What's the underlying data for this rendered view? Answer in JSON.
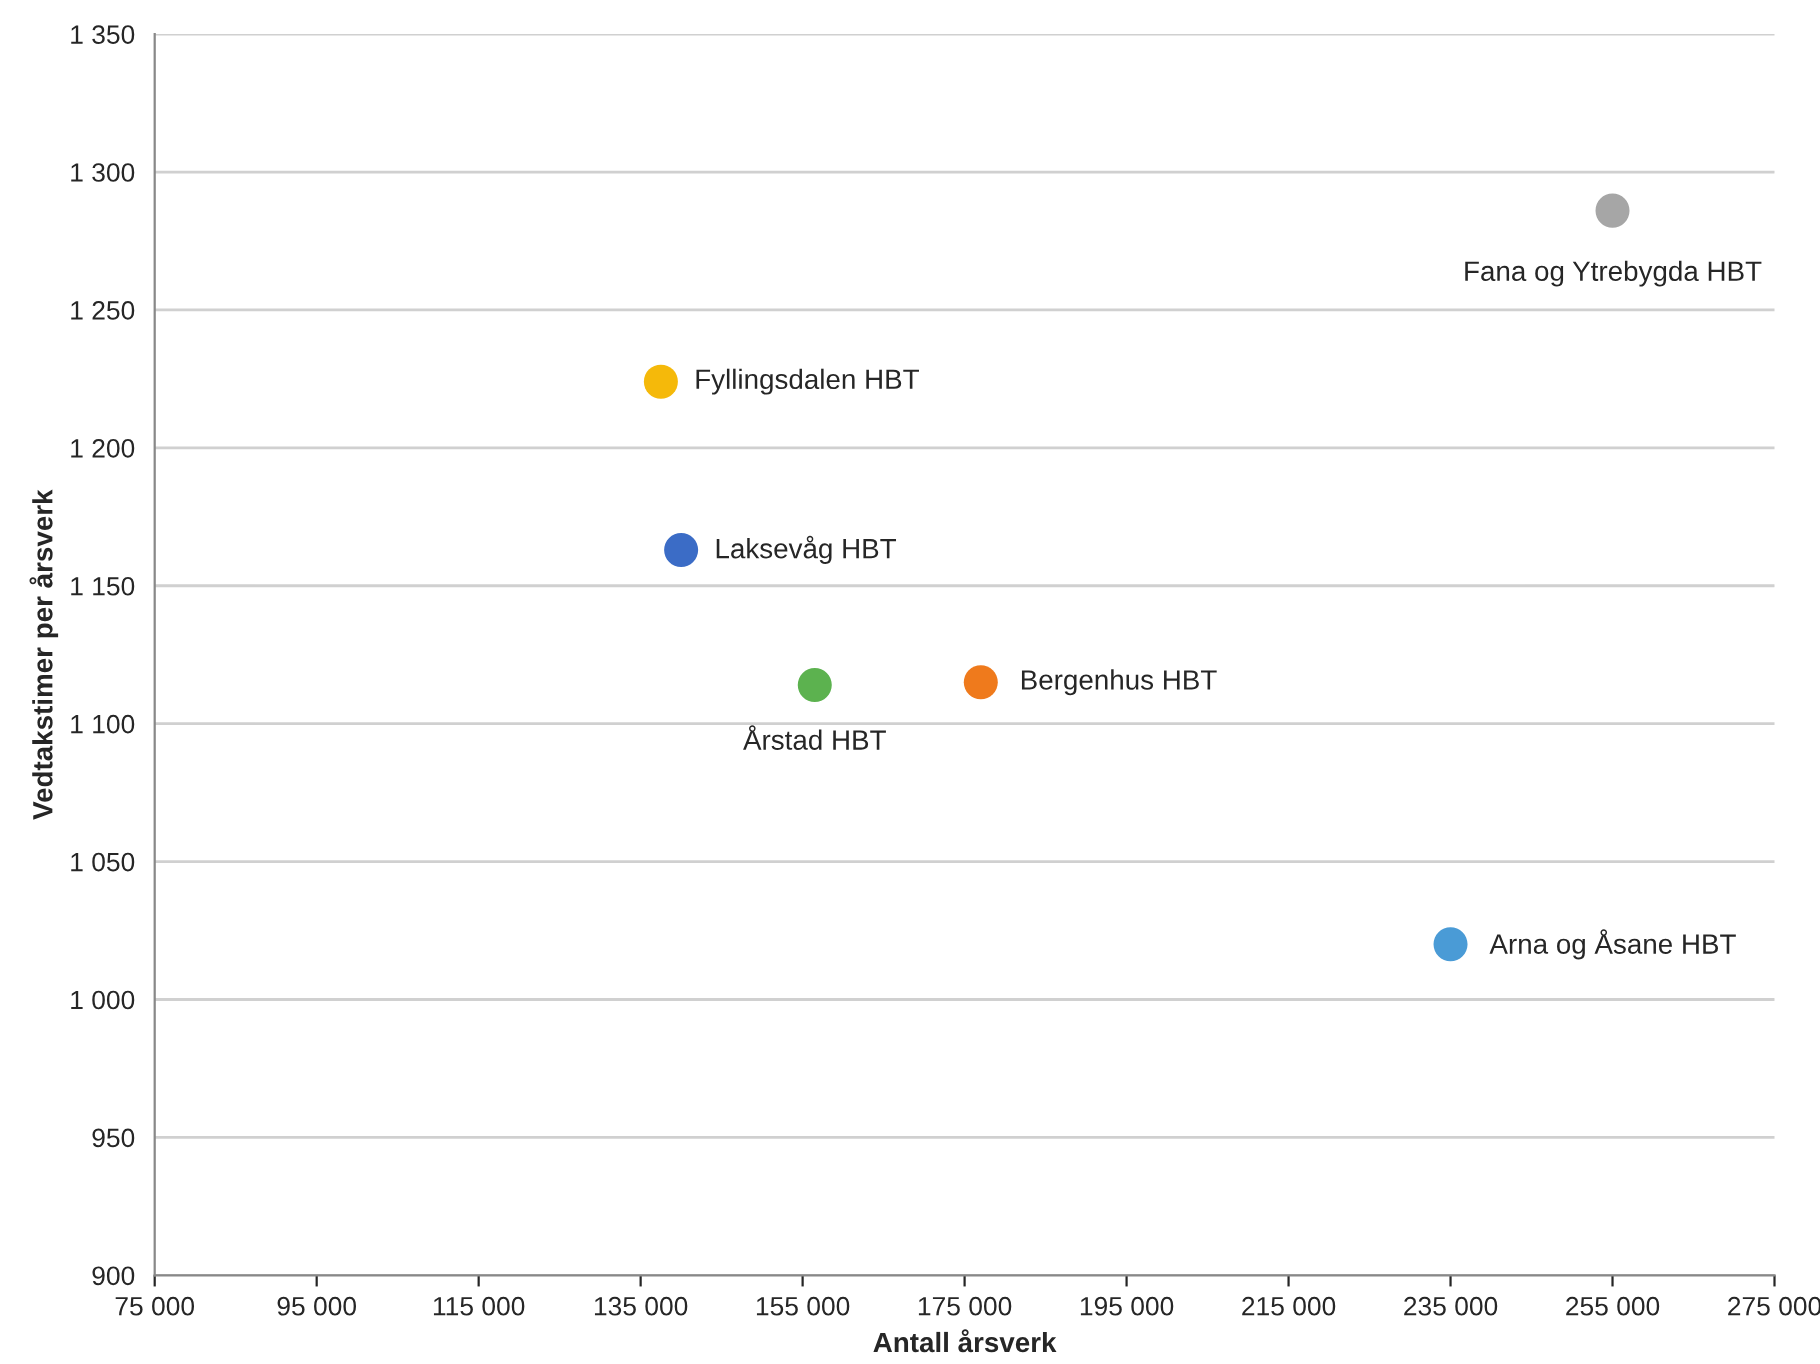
{
  "chart_data": {
    "type": "scatter",
    "xlabel": "Antall årsverk",
    "ylabel": "Vedtakstimer per årsverk",
    "xlim": [
      75000,
      275000
    ],
    "xticks": [
      {
        "value": 75000,
        "label": "75 000"
      },
      {
        "value": 95000,
        "label": "95 000"
      },
      {
        "value": 115000,
        "label": "115 000"
      },
      {
        "value": 135000,
        "label": "135 000"
      },
      {
        "value": 155000,
        "label": "155 000"
      },
      {
        "value": 175000,
        "label": "175 000"
      },
      {
        "value": 195000,
        "label": "195 000"
      },
      {
        "value": 215000,
        "label": "215 000"
      },
      {
        "value": 235000,
        "label": "235 000"
      },
      {
        "value": 255000,
        "label": "255 000"
      },
      {
        "value": 275000,
        "label": "275 000"
      }
    ],
    "ylim": [
      900,
      1350
    ],
    "yticks": [
      900,
      950,
      {
        "value": 1000,
        "label": "1 000"
      },
      {
        "value": 1050,
        "label": "1 050"
      },
      {
        "value": 1100,
        "label": "1 100"
      },
      {
        "value": 1150,
        "label": "1 150"
      },
      {
        "value": 1200,
        "label": "1 200"
      },
      {
        "value": 1250,
        "label": "1 250"
      },
      {
        "value": 1300,
        "label": "1 300"
      },
      {
        "value": 1350,
        "label": "1 350"
      }
    ],
    "grid": "y",
    "legend": false,
    "marker": "circle",
    "series": [
      {
        "name": "Fyllingsdalen HBT",
        "color": "#f5b90a",
        "x": [
          137500
        ],
        "values": [
          1224
        ]
      },
      {
        "name": "Laksevåg HBT",
        "color": "#3b6cc6",
        "x": [
          140000
        ],
        "values": [
          1163
        ]
      },
      {
        "name": "Årstad HBT",
        "color": "#5cb24f",
        "x": [
          156500
        ],
        "values": [
          1114
        ]
      },
      {
        "name": "Bergenhus HBT",
        "color": "#ef7a1c",
        "x": [
          177000
        ],
        "values": [
          1115
        ]
      },
      {
        "name": "Arna og Åsane HBT",
        "color": "#4a9bd6",
        "x": [
          235000
        ],
        "values": [
          1020
        ]
      },
      {
        "name": "Fana og Ytrebygda HBT",
        "color": "#a6a6a6",
        "x": [
          255000
        ],
        "values": [
          1286
        ]
      }
    ]
  }
}
